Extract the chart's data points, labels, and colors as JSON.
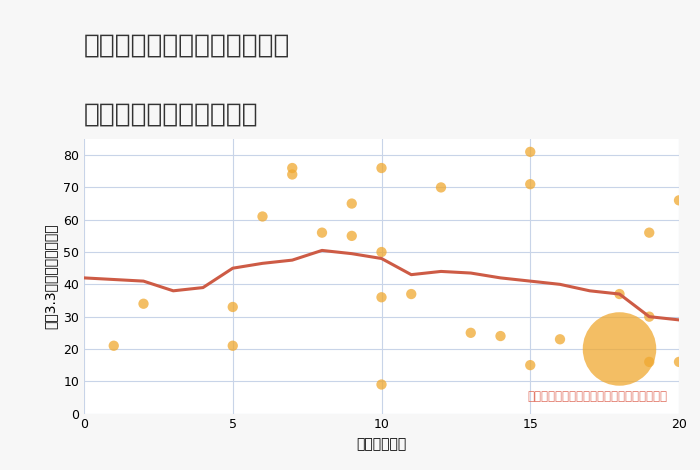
{
  "title_line1": "兵庫県たつの市御津町室津の",
  "title_line2": "駅距離別中古戸建て価格",
  "xlabel": "駅距離（分）",
  "ylabel": "坪（3.3㎡）単価（万円）",
  "background_color": "#f7f7f7",
  "plot_bg_color": "#ffffff",
  "xlim": [
    0,
    20
  ],
  "ylim": [
    0,
    85
  ],
  "yticks": [
    0,
    10,
    20,
    30,
    40,
    50,
    60,
    70,
    80
  ],
  "xticks": [
    0,
    5,
    10,
    15,
    20
  ],
  "line_x": [
    0,
    1,
    2,
    3,
    4,
    5,
    6,
    7,
    8,
    9,
    10,
    11,
    12,
    13,
    14,
    15,
    16,
    17,
    18,
    19,
    20
  ],
  "line_y": [
    42,
    41.5,
    41,
    38,
    39,
    45,
    46.5,
    47.5,
    50.5,
    49.5,
    48,
    43,
    44,
    43.5,
    42,
    41,
    40,
    38,
    37,
    30,
    29
  ],
  "line_color": "#cd5b45",
  "line_width": 2.2,
  "scatter_x": [
    1,
    2,
    5,
    5,
    6,
    7,
    7,
    8,
    9,
    9,
    10,
    10,
    10,
    10,
    11,
    12,
    13,
    14,
    15,
    15,
    15,
    16,
    18,
    18,
    19,
    19,
    19,
    20,
    20
  ],
  "scatter_y": [
    21,
    34,
    33,
    21,
    61,
    76,
    74,
    56,
    65,
    55,
    76,
    50,
    36,
    9,
    37,
    70,
    25,
    24,
    81,
    71,
    15,
    23,
    37,
    20,
    56,
    30,
    16,
    66,
    16
  ],
  "scatter_sizes": [
    55,
    55,
    55,
    55,
    55,
    55,
    55,
    55,
    55,
    55,
    55,
    55,
    55,
    55,
    55,
    55,
    55,
    55,
    55,
    55,
    55,
    55,
    55,
    2800,
    55,
    55,
    55,
    55,
    55
  ],
  "scatter_color": "#f0a830",
  "scatter_alpha": 0.75,
  "annotation": "円の大きさは、取引のあった物件面積を示す",
  "annotation_color": "#e07060",
  "grid_color": "#c8d4e8",
  "title_fontsize": 19,
  "label_fontsize": 10,
  "tick_fontsize": 9,
  "annotation_fontsize": 8.5
}
